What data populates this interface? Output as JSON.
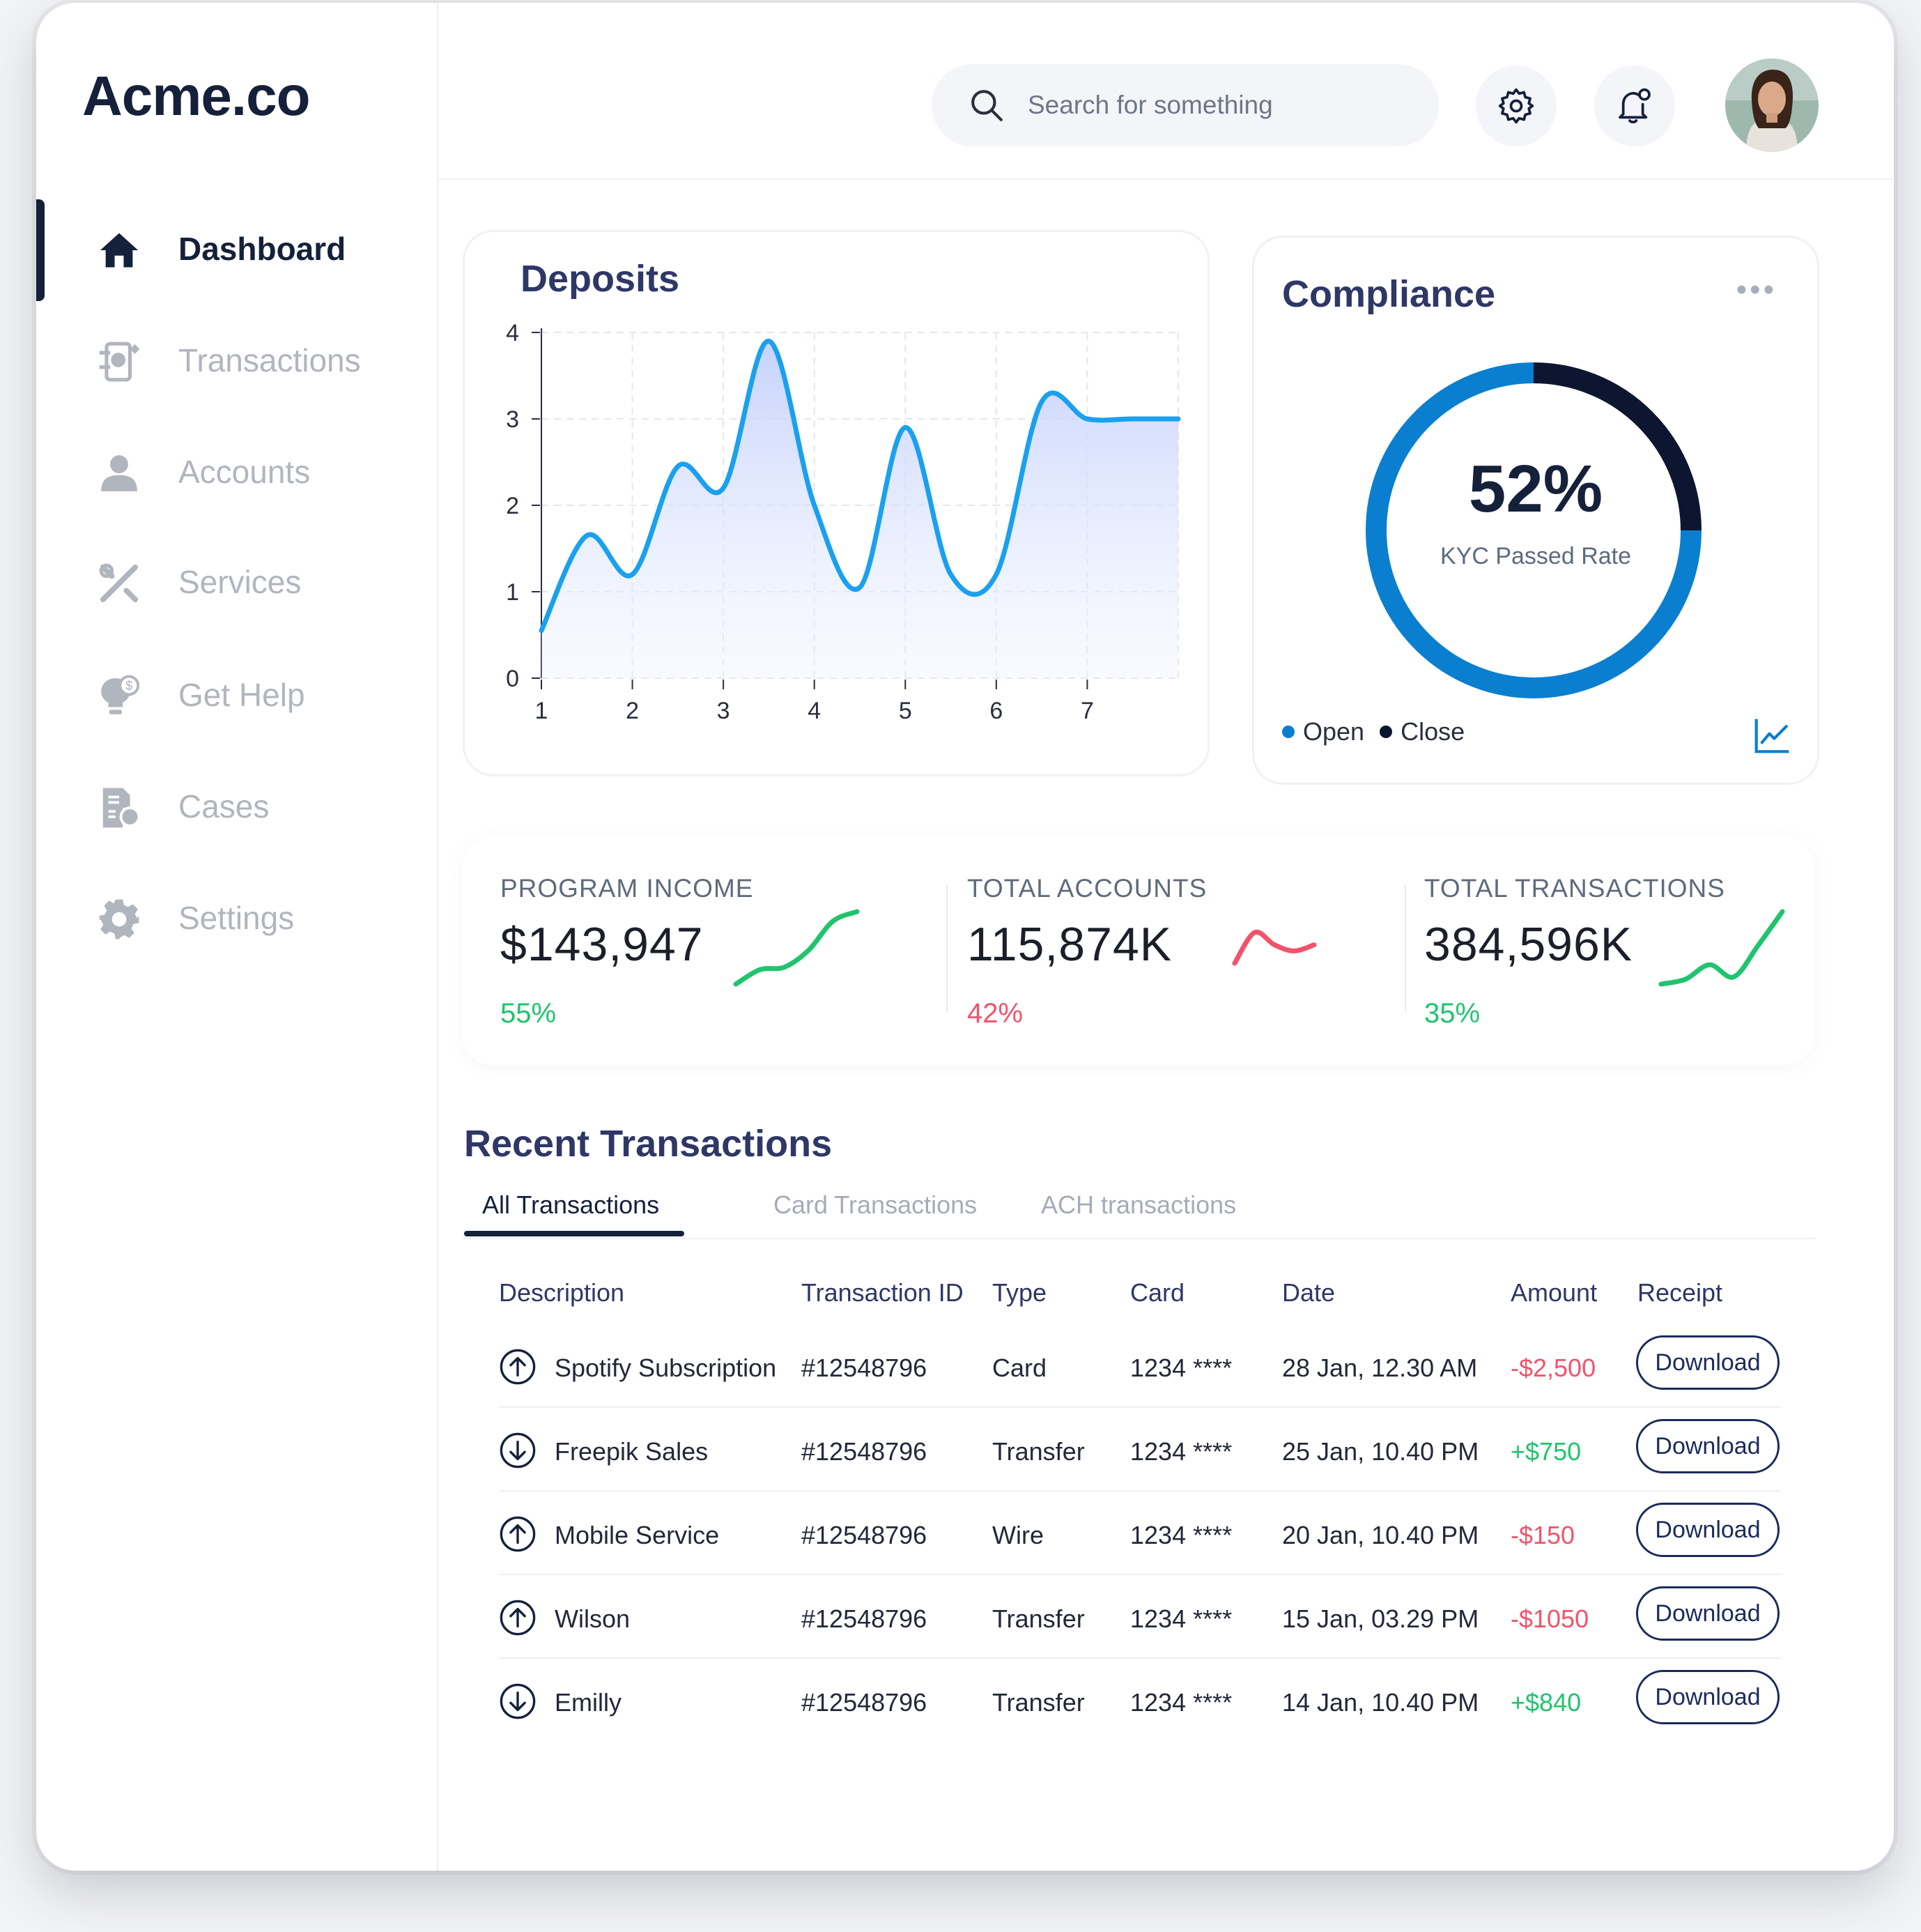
{
  "app": {
    "logo": "Acme.co"
  },
  "sidebar": {
    "items": [
      {
        "label": "Dashboard",
        "icon": "home-icon",
        "active": true
      },
      {
        "label": "Transactions",
        "icon": "transactions-icon",
        "active": false
      },
      {
        "label": "Accounts",
        "icon": "user-icon",
        "active": false
      },
      {
        "label": "Services",
        "icon": "tools-icon",
        "active": false
      },
      {
        "label": "Get Help",
        "icon": "help-bulb-icon",
        "active": false
      },
      {
        "label": "Cases",
        "icon": "cases-icon",
        "active": false
      },
      {
        "label": "Settings",
        "icon": "gear-icon",
        "active": false
      }
    ]
  },
  "header": {
    "search": {
      "placeholder": "Search for something",
      "icon": "search-icon"
    },
    "settings_icon": "gear-icon",
    "notifications_icon": "bell-icon"
  },
  "deposits": {
    "title": "Deposits",
    "chart_data": {
      "type": "area",
      "title": "Deposits",
      "xlabel": "",
      "ylabel": "",
      "x_ticks": [
        1,
        2,
        3,
        4,
        5,
        6,
        7
      ],
      "y_ticks": [
        0,
        1,
        2,
        3,
        4
      ],
      "ylim": [
        0,
        4
      ],
      "grid": true,
      "series": [
        {
          "x": [
            1,
            1.5,
            2,
            2.5,
            3,
            3.5,
            4,
            4.5,
            5,
            5.5,
            6,
            6.5,
            7,
            7.5,
            8
          ],
          "values": [
            0.55,
            1.65,
            1.2,
            2.45,
            2.2,
            3.9,
            2.0,
            1.05,
            2.9,
            1.2,
            1.2,
            3.2,
            3.0,
            3.0,
            3.0
          ]
        }
      ],
      "line_color": "#1aa0ef",
      "fill_color": "#c9d6fb"
    }
  },
  "compliance": {
    "title": "Compliance",
    "menu_icon": "more-dots-icon",
    "value": "52%",
    "subtitle": "KYC Passed Rate",
    "chart_data": {
      "type": "pie",
      "categories": [
        "Open",
        "Close"
      ],
      "values": [
        75,
        25
      ],
      "colors": [
        "#0a7fd0",
        "#0c1630"
      ]
    },
    "legend": [
      {
        "label": "Open",
        "color": "#0a7fd0"
      },
      {
        "label": "Close",
        "color": "#0c1630"
      }
    ],
    "trend_icon": "line-chart-icon"
  },
  "stats": [
    {
      "label": "PROGRAM INCOME",
      "value": "$143,947",
      "percent": "55%",
      "trend": "up",
      "color": "#1fc46e",
      "sparkline": [
        1,
        1.6,
        1.7,
        2.4,
        3.6,
        4.0
      ]
    },
    {
      "label": "TOTAL ACCOUNTS",
      "value": "115,874K",
      "percent": "42%",
      "trend": "down",
      "color": "#f2536a",
      "sparkline": [
        1.0,
        1.5,
        1.3,
        1.2,
        1.3
      ]
    },
    {
      "label": "TOTAL TRANSACTIONS",
      "value": "384,596K",
      "percent": "35%",
      "trend": "up",
      "color": "#1fc46e",
      "sparkline": [
        1,
        1.2,
        1.8,
        1.3,
        2.6,
        4.0
      ]
    }
  ],
  "transactions": {
    "title": "Recent Transactions",
    "tabs": [
      "All Transactions",
      "Card Transactions",
      "ACH transactions"
    ],
    "active_tab": "All Transactions",
    "columns": [
      "Description",
      "Transaction ID",
      "Type",
      "Card",
      "Date",
      "Amount",
      "Receipt"
    ],
    "rows": [
      {
        "direction": "up",
        "description": "Spotify Subscription",
        "id": "#12548796",
        "type": "Card",
        "card": "1234 ****",
        "date": "28 Jan, 12.30 AM",
        "amount": "-$2,500",
        "amount_color": "#f2536a",
        "receipt": "Download"
      },
      {
        "direction": "down",
        "description": "Freepik Sales",
        "id": "#12548796",
        "type": "Transfer",
        "card": "1234 ****",
        "date": "25 Jan, 10.40 PM",
        "amount": "+$750",
        "amount_color": "#1fc46e",
        "receipt": "Download"
      },
      {
        "direction": "up",
        "description": "Mobile Service",
        "id": "#12548796",
        "type": "Wire",
        "card": "1234 ****",
        "date": "20 Jan, 10.40 PM",
        "amount": "-$150",
        "amount_color": "#f2536a",
        "receipt": "Download"
      },
      {
        "direction": "up",
        "description": "Wilson",
        "id": "#12548796",
        "type": "Transfer",
        "card": "1234 ****",
        "date": "15 Jan, 03.29 PM",
        "amount": "-$1050",
        "amount_color": "#f2536a",
        "receipt": "Download"
      },
      {
        "direction": "down",
        "description": "Emilly",
        "id": "#12548796",
        "type": "Transfer",
        "card": "1234 ****",
        "date": "14 Jan, 10.40 PM",
        "amount": "+$840",
        "amount_color": "#1fc46e",
        "receipt": "Download"
      }
    ]
  }
}
